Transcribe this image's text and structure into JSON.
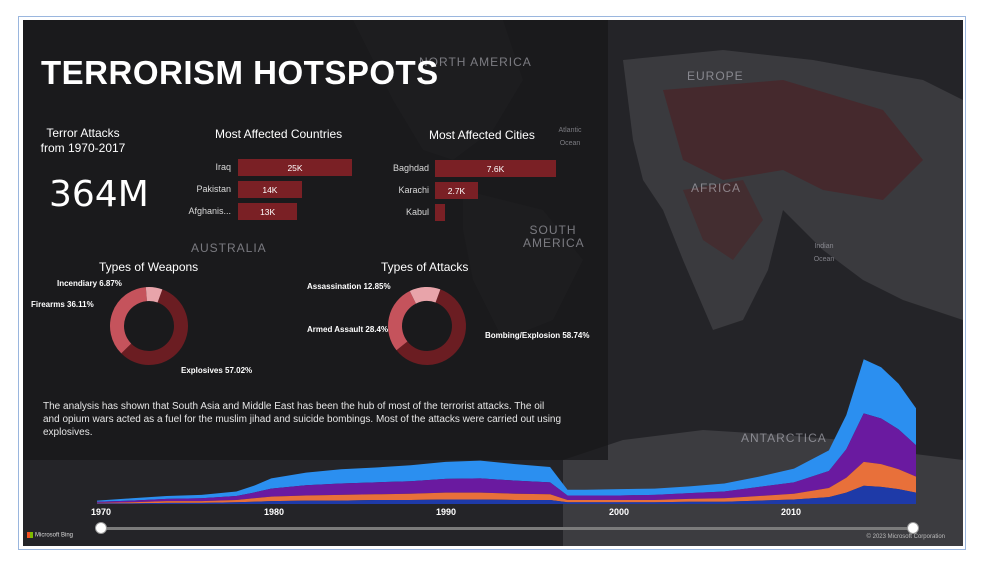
{
  "title": "TERRORISM HOTSPOTS",
  "kpi": {
    "label": "Terror Attacks from 1970-2017",
    "value": "364M"
  },
  "map_labels": {
    "north_america": "NORTH AMERICA",
    "europe": "EUROPE",
    "africa": "AFRICA",
    "south_america": "SOUTH AMERICA",
    "australia": "AUSTRALIA",
    "antarctica": "ANTARCTICA",
    "atlantic": "Atlantic Ocean",
    "indian": "Indian Ocean"
  },
  "analysis_text": "The analysis has shown that South Asia and Middle East has been the hub of most of the terrorist attacks. The oil and opium wars acted as a fuel for the muslim jihad and suicide bombings. Most of the attacks were carried out using explosives.",
  "footer": {
    "bing": "Microsoft Bing",
    "copyright": "© 2023 Microsoft Corporation"
  },
  "colors": {
    "bar": "#7a2025",
    "donut_dark": "#6b1d22",
    "donut_mid": "#c5535c",
    "donut_light": "#e8a4aa"
  },
  "chart_data": [
    {
      "type": "bar",
      "title": "Most Affected Countries",
      "categories": [
        "Iraq",
        "Pakistan",
        "Afghanis..."
      ],
      "values": [
        25000,
        14000,
        13000
      ],
      "data_labels": [
        "25K",
        "14K",
        "13K"
      ]
    },
    {
      "type": "bar",
      "title": "Most Affected Cities",
      "categories": [
        "Baghdad",
        "Karachi",
        "Kabul"
      ],
      "values": [
        7600,
        2700,
        400
      ],
      "data_labels": [
        "7.6K",
        "2.7K",
        ""
      ]
    },
    {
      "type": "pie",
      "title": "Types of Weapons",
      "slices": [
        {
          "label": "Explosives 57.02%",
          "value": 57.02
        },
        {
          "label": "Firearms 36.11%",
          "value": 36.11
        },
        {
          "label": "Incendiary 6.87%",
          "value": 6.87
        }
      ]
    },
    {
      "type": "pie",
      "title": "Types of Attacks",
      "slices": [
        {
          "label": "Bombing/Explosion 58.74%",
          "value": 58.74
        },
        {
          "label": "Armed Assault 28.4%",
          "value": 28.4
        },
        {
          "label": "Assassination 12.85%",
          "value": 12.85
        }
      ]
    },
    {
      "type": "area",
      "x_ticks": [
        "1970",
        "1980",
        "1990",
        "2000",
        "2010"
      ],
      "x": [
        1970,
        1972,
        1974,
        1976,
        1978,
        1979,
        1980,
        1982,
        1984,
        1986,
        1988,
        1990,
        1992,
        1994,
        1996,
        1997,
        1998,
        2000,
        2002,
        2004,
        2006,
        2008,
        2010,
        2012,
        2013,
        2014,
        2015,
        2016,
        2017
      ],
      "series": [
        {
          "values": [
            0.2,
            0.4,
            0.5,
            0.6,
            0.8,
            1.2,
            1.8,
            2.2,
            2.5,
            2.6,
            2.8,
            3.0,
            3.1,
            2.9,
            2.7,
            1.0,
            1.0,
            1.1,
            1.1,
            1.2,
            1.4,
            1.8,
            2.4,
            3.6,
            6.0,
            9.5,
            9.0,
            8.0,
            6.5
          ]
        },
        {
          "values": [
            0.2,
            0.3,
            0.4,
            0.5,
            0.7,
            1.0,
            1.4,
            1.8,
            2.0,
            2.1,
            2.2,
            2.4,
            2.5,
            2.3,
            2.1,
            0.8,
            0.8,
            0.8,
            0.9,
            1.0,
            1.2,
            1.6,
            2.0,
            3.0,
            5.0,
            8.5,
            8.0,
            7.0,
            5.5
          ]
        },
        {
          "values": [
            0.1,
            0.2,
            0.3,
            0.3,
            0.4,
            0.6,
            0.8,
            0.9,
            1.0,
            1.0,
            1.1,
            1.2,
            1.2,
            1.1,
            1.0,
            0.4,
            0.4,
            0.4,
            0.4,
            0.5,
            0.6,
            0.8,
            1.0,
            1.6,
            2.6,
            4.2,
            4.0,
            3.5,
            2.8
          ]
        },
        {
          "values": [
            0.1,
            0.1,
            0.2,
            0.2,
            0.3,
            0.4,
            0.5,
            0.6,
            0.6,
            0.7,
            0.7,
            0.8,
            0.8,
            0.7,
            0.7,
            0.3,
            0.3,
            0.3,
            0.3,
            0.4,
            0.4,
            0.6,
            0.8,
            1.2,
            2.0,
            3.2,
            3.0,
            2.6,
            2.0
          ]
        }
      ]
    }
  ]
}
